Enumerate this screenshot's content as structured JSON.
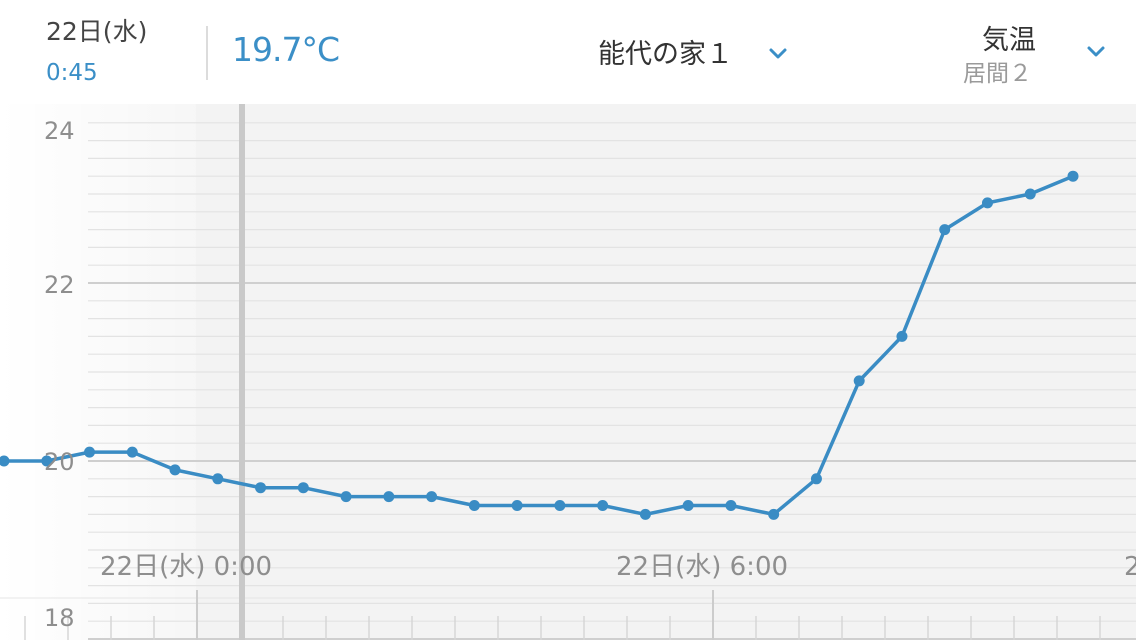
{
  "header": {
    "date": "22日(水)",
    "time": "0:45",
    "current_value": "19.7°C",
    "location": "能代の家１",
    "metric": "気温",
    "room": "居間２"
  },
  "chart_data": {
    "type": "line",
    "ylim": [
      18,
      24
    ],
    "yticks": [
      "24",
      "22",
      "20",
      "18"
    ],
    "x_labels": [
      "22日(水) 0:00",
      "22日(水) 6:00",
      "2"
    ],
    "grid": true,
    "series": [
      {
        "values": [
          20.0,
          20.0,
          20.1,
          20.1,
          19.9,
          19.8,
          19.7,
          19.7,
          19.6,
          19.6,
          19.6,
          19.5,
          19.5,
          19.5,
          19.5,
          19.4,
          19.5,
          19.5,
          19.4,
          19.8,
          20.9,
          21.4,
          22.6,
          22.9,
          23.0,
          23.2
        ],
        "color": "#3a8cc4"
      }
    ]
  }
}
